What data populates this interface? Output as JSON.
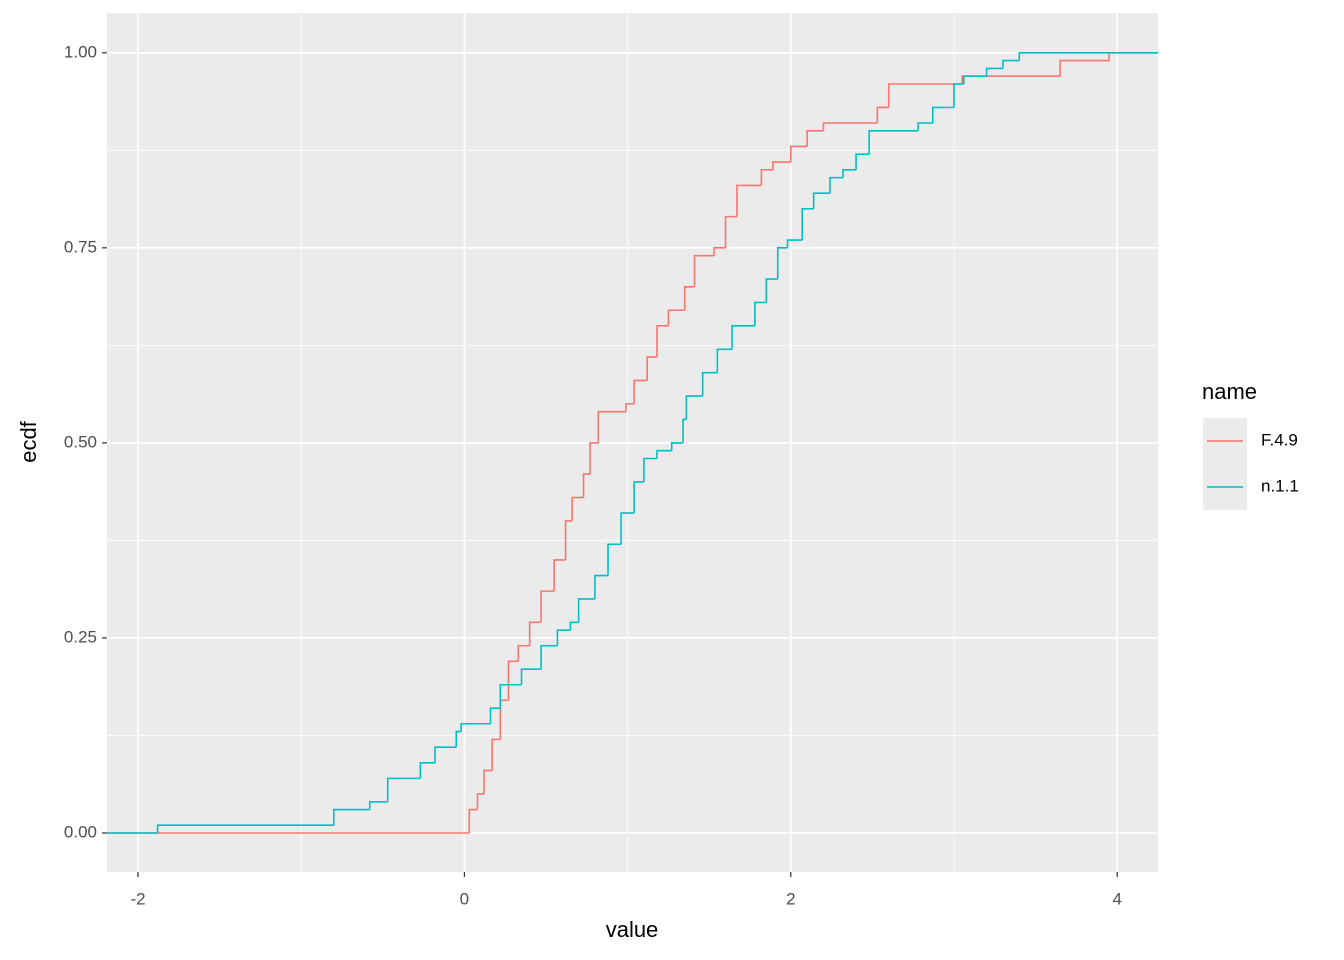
{
  "chart_data": {
    "type": "step",
    "x_label": "value",
    "y_label": "ecdf",
    "legend_title": "name",
    "xlim": [
      -2.19,
      4.25
    ],
    "ylim": [
      -0.05,
      1.051
    ],
    "xticks": [
      -2,
      0,
      2,
      4
    ],
    "yticks": [
      {
        "value": 0,
        "label": "0.00"
      },
      {
        "value": 0.25,
        "label": "0.25"
      },
      {
        "value": 0.5,
        "label": "0.50"
      },
      {
        "value": 0.75,
        "label": "0.75"
      },
      {
        "value": 1,
        "label": "1.00"
      }
    ],
    "grid": true,
    "minor_grid": true,
    "legend": "right",
    "series": [
      {
        "name": "F.4.9",
        "color": "#F8766D",
        "x": [
          -2.19,
          0.03,
          0.08,
          0.12,
          0.17,
          0.22,
          0.27,
          0.33,
          0.4,
          0.47,
          0.55,
          0.62,
          0.66,
          0.73,
          0.77,
          0.82,
          0.99,
          1.04,
          1.12,
          1.18,
          1.25,
          1.35,
          1.41,
          1.53,
          1.6,
          1.67,
          1.82,
          1.89,
          2.0,
          2.1,
          2.2,
          2.53,
          2.6,
          3.05,
          3.65,
          3.95,
          4.25
        ],
        "values": [
          0,
          0.03,
          0.05,
          0.08,
          0.12,
          0.17,
          0.22,
          0.24,
          0.27,
          0.31,
          0.35,
          0.4,
          0.43,
          0.46,
          0.5,
          0.54,
          0.55,
          0.58,
          0.61,
          0.65,
          0.67,
          0.7,
          0.74,
          0.75,
          0.79,
          0.83,
          0.85,
          0.86,
          0.88,
          0.9,
          0.91,
          0.93,
          0.96,
          0.97,
          0.99,
          1,
          1
        ]
      },
      {
        "name": "n.1.1",
        "color": "#00BFC4",
        "x": [
          -2.19,
          -1.88,
          -0.8,
          -0.58,
          -0.47,
          -0.27,
          -0.18,
          -0.05,
          -0.02,
          0.16,
          0.22,
          0.35,
          0.47,
          0.57,
          0.65,
          0.7,
          0.8,
          0.88,
          0.96,
          1.04,
          1.1,
          1.18,
          1.27,
          1.34,
          1.36,
          1.46,
          1.55,
          1.64,
          1.78,
          1.85,
          1.92,
          1.98,
          2.07,
          2.14,
          2.24,
          2.32,
          2.4,
          2.48,
          2.78,
          2.87,
          3.0,
          3.06,
          3.2,
          3.3,
          3.4,
          4.25
        ],
        "values": [
          0,
          0.01,
          0.03,
          0.04,
          0.07,
          0.09,
          0.11,
          0.13,
          0.14,
          0.16,
          0.19,
          0.21,
          0.24,
          0.26,
          0.27,
          0.3,
          0.33,
          0.37,
          0.41,
          0.45,
          0.48,
          0.49,
          0.5,
          0.53,
          0.56,
          0.59,
          0.62,
          0.65,
          0.68,
          0.71,
          0.75,
          0.76,
          0.8,
          0.82,
          0.84,
          0.85,
          0.87,
          0.9,
          0.91,
          0.93,
          0.96,
          0.97,
          0.98,
          0.99,
          1,
          1
        ]
      }
    ]
  }
}
